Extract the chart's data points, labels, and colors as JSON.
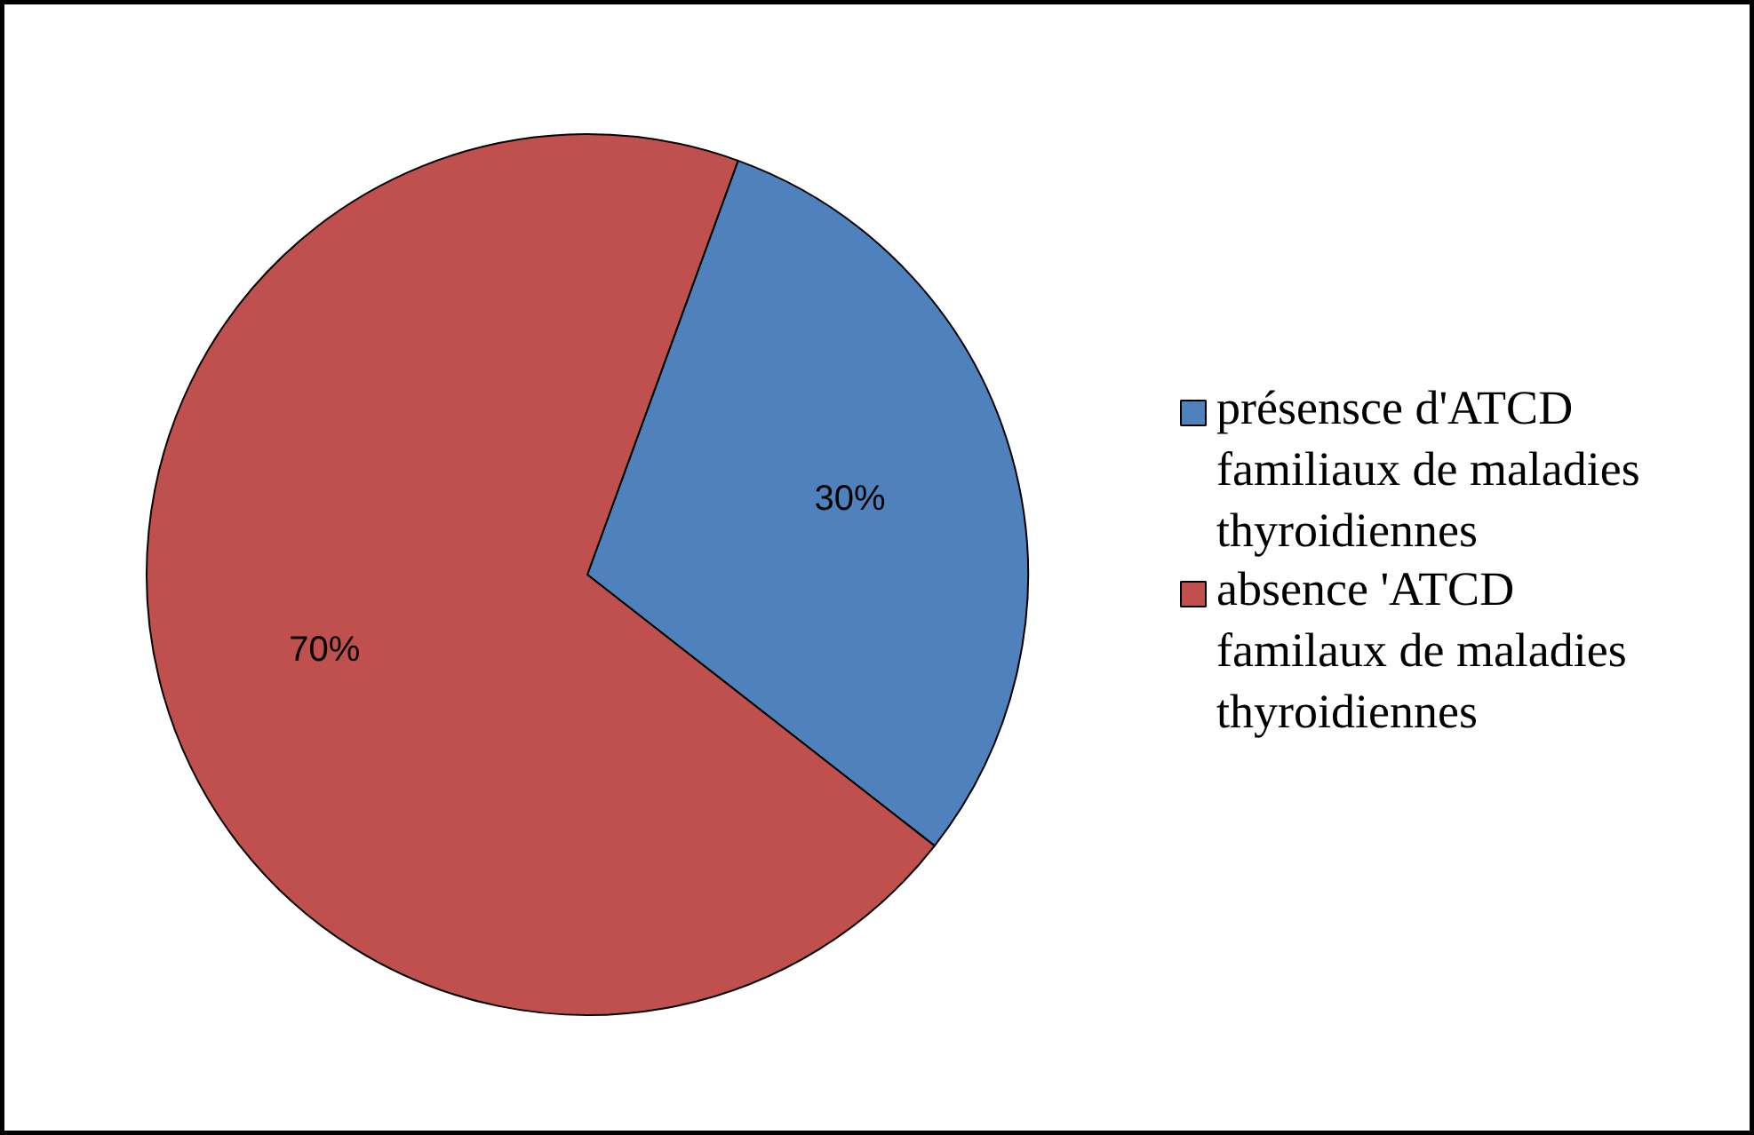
{
  "chart_data": {
    "type": "pie",
    "categories": [
      "présensce d'ATCD familiaux de maladies thyroidiennes",
      "absence 'ATCD familaux de maladies thyroidiennes"
    ],
    "values": [
      30,
      70
    ],
    "colors": [
      "#4f81bd",
      "#c0504d"
    ],
    "value_labels": [
      "30%",
      "70%"
    ],
    "legend": "right"
  }
}
